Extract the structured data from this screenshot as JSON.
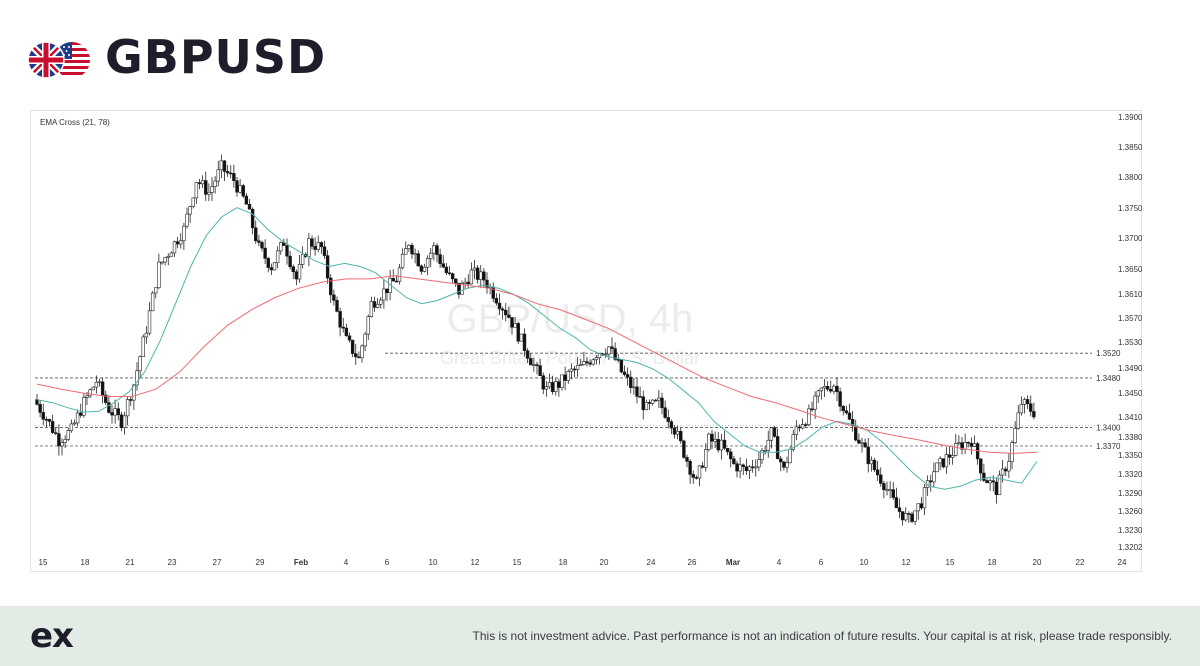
{
  "header": {
    "title": "GBPUSD",
    "icon": "gb-us-flags-icon"
  },
  "footer": {
    "logo": "ex",
    "disclaimer": "This is not investment advice. Past performance is not an indication of future results. Your capital is at risk, please trade responsibly."
  },
  "chart_data": {
    "type": "candlestick",
    "indicator_label": "EMA Cross (21, 78)",
    "watermark": {
      "symbol": "GBP/USD, 4h",
      "description": "Great Britain Pound / U.S. Dollar"
    },
    "x_tick_labels": [
      "15",
      "18",
      "21",
      "23",
      "27",
      "29",
      "Feb",
      "4",
      "6",
      "10",
      "12",
      "15",
      "18",
      "20",
      "24",
      "26",
      "Mar",
      "4",
      "6",
      "10",
      "12",
      "15",
      "18",
      "20",
      "22",
      "24"
    ],
    "y_tick_labels": [
      "1.39000",
      "1.38500",
      "1.38000",
      "1.37500",
      "1.37000",
      "1.36500",
      "1.36100",
      "1.35700",
      "1.35300",
      "1.34900",
      "1.34500",
      "1.34100",
      "1.33800",
      "1.33500",
      "1.33200",
      "1.32900",
      "1.32600",
      "1.32300",
      "1.32020"
    ],
    "ylim": [
      1.3202,
      1.39
    ],
    "levels": [
      {
        "label": "1.3520",
        "value": 1.352
      },
      {
        "label": "1.3480",
        "value": 1.348
      },
      {
        "label": "1.3400",
        "value": 1.34
      },
      {
        "label": "1.3370",
        "value": 1.337
      }
    ],
    "close_path": [
      1.3445,
      1.3415,
      1.338,
      1.3395,
      1.344,
      1.3475,
      1.343,
      1.341,
      1.347,
      1.356,
      1.366,
      1.369,
      1.372,
      1.38,
      1.378,
      1.382,
      1.38,
      1.376,
      1.369,
      1.366,
      1.37,
      1.364,
      1.37,
      1.369,
      1.36,
      1.354,
      1.351,
      1.36,
      1.362,
      1.364,
      1.37,
      1.366,
      1.369,
      1.365,
      1.362,
      1.365,
      1.364,
      1.361,
      1.358,
      1.354,
      1.35,
      1.346,
      1.347,
      1.349,
      1.35,
      1.352,
      1.353,
      1.349,
      1.346,
      1.343,
      1.344,
      1.341,
      1.336,
      1.331,
      1.338,
      1.337,
      1.334,
      1.333,
      1.335,
      1.339,
      1.333,
      1.34,
      1.342,
      1.346,
      1.347,
      1.342,
      1.338,
      1.334,
      1.331,
      1.327,
      1.325,
      1.328,
      1.333,
      1.335,
      1.337,
      1.338,
      1.332,
      1.33,
      1.335,
      1.344,
      1.3425
    ],
    "series": [
      {
        "name": "EMA 21",
        "color": "#4db6ac",
        "values": [
          1.3445,
          1.344,
          1.3432,
          1.3425,
          1.3426,
          1.344,
          1.3458,
          1.349,
          1.354,
          1.36,
          1.366,
          1.371,
          1.374,
          1.3755,
          1.3745,
          1.372,
          1.37,
          1.3685,
          1.367,
          1.366,
          1.3665,
          1.366,
          1.365,
          1.363,
          1.361,
          1.36,
          1.3605,
          1.3615,
          1.3625,
          1.363,
          1.3625,
          1.3615,
          1.36,
          1.358,
          1.356,
          1.3545,
          1.3525,
          1.3515,
          1.351,
          1.3505,
          1.3495,
          1.348,
          1.346,
          1.344,
          1.341,
          1.339,
          1.337,
          1.336,
          1.336,
          1.3365,
          1.338,
          1.34,
          1.341,
          1.3405,
          1.3395,
          1.3375,
          1.335,
          1.3325,
          1.3305,
          1.33,
          1.3305,
          1.3315,
          1.332,
          1.3315,
          1.331,
          1.3345
        ]
      },
      {
        "name": "EMA 78",
        "color": "#ef6b73",
        "values": [
          1.347,
          1.3462,
          1.3455,
          1.345,
          1.345,
          1.3462,
          1.349,
          1.353,
          1.3565,
          1.359,
          1.361,
          1.3625,
          1.3635,
          1.364,
          1.364,
          1.3645,
          1.364,
          1.3635,
          1.363,
          1.3625,
          1.3615,
          1.36,
          1.359,
          1.3575,
          1.356,
          1.354,
          1.352,
          1.35,
          1.348,
          1.3465,
          1.345,
          1.344,
          1.3428,
          1.3415,
          1.3405,
          1.3395,
          1.3387,
          1.338,
          1.3372,
          1.3365,
          1.336,
          1.3358,
          1.336
        ]
      }
    ]
  }
}
